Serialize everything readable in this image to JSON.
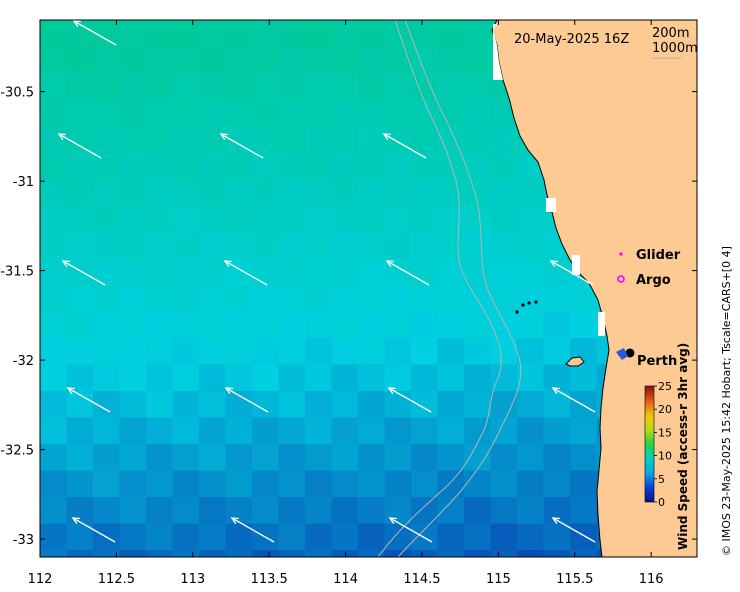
{
  "map": {
    "title": "20-May-2025 16Z",
    "contour_labels": [
      "200m",
      "1000m"
    ],
    "credit": "© IMOS 23-May-2025 15:42 Hobart; Tscale=CARS+[0 4]",
    "lon_ticks": [
      "112",
      "112.5",
      "113",
      "113.5",
      "114",
      "114.5",
      "115",
      "115.5",
      "116"
    ],
    "lat_ticks": [
      "-30.5",
      "-31",
      "-31.5",
      "-32",
      "-32.5",
      "-33"
    ],
    "legend": {
      "glider": "Glider",
      "argo": "Argo"
    },
    "place_label": "Perth",
    "colorbar": {
      "title": "Wind Speed (access-r 3hr avg)",
      "ticks": [
        "25",
        "20",
        "15",
        "10",
        "5",
        "0"
      ],
      "min": 0,
      "max": 25
    },
    "colors": {
      "land": "#fdca93",
      "high_wind": "#00c99a",
      "low_wind": "#0a23a8",
      "contour": "#b4b4b4",
      "argo": "#ff00ff"
    },
    "extent": {
      "lon_min": 112,
      "lon_max": 116.3,
      "lat_min": -33.1,
      "lat_max": -30.1
    }
  }
}
